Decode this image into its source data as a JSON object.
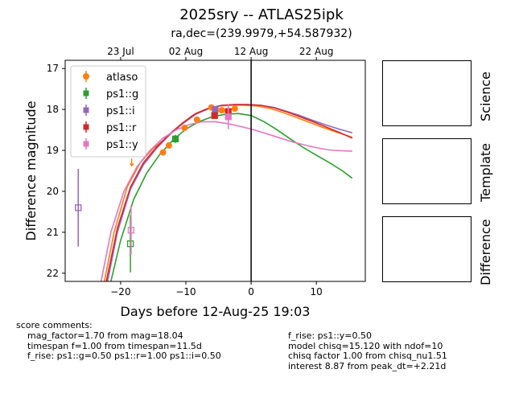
{
  "title": "2025sry -- ATLAS25ipk",
  "subtitle": "ra,dec=(239.9979,+54.587932)",
  "panels": {
    "science": "Science",
    "template": "Template",
    "difference": "Difference"
  },
  "comments": {
    "header": "score comments:",
    "left": [
      "mag_factor=1.70 from mag=18.04",
      "timespan f=1.00 from timespan=11.5d",
      "f_rise: ps1::g=0.50 ps1::r=1.00 ps1::i=0.50"
    ],
    "right": [
      "f_rise: ps1::y=0.50",
      "model chisq=15.120 with ndof=10",
      "chisq factor 1.00 from chisq_nu1.51",
      "interest 8.87 from peak_dt=+2.21d"
    ]
  },
  "chart_data": {
    "type": "scatter",
    "xlabel": "Days before 12-Aug-25 19:03",
    "ylabel": "Difference magnitude",
    "xlim": [
      -28.5,
      17.5
    ],
    "ylim": [
      22.2,
      16.8
    ],
    "y_inverted": true,
    "x_ticks": [
      -20,
      -10,
      0,
      10
    ],
    "y_ticks": [
      17,
      18,
      19,
      20,
      21,
      22
    ],
    "top_axis_ticks": [
      {
        "label": "23 Jul",
        "x": -20.0
      },
      {
        "label": "02 Aug",
        "x": -10.0
      },
      {
        "label": "12 Aug",
        "x": 0.0
      },
      {
        "label": "22 Aug",
        "x": 10.0
      }
    ],
    "reference_line_x": 0,
    "legend_position": "upper-left",
    "series": [
      {
        "name": "atlaso",
        "color": "#ff7f0e",
        "marker": "circle",
        "points": [
          {
            "x": -13.5,
            "y": 19.05,
            "err": 0.05
          },
          {
            "x": -12.6,
            "y": 18.88,
            "err": 0.05
          },
          {
            "x": -10.2,
            "y": 18.45,
            "err": 0.05
          },
          {
            "x": -8.3,
            "y": 18.25,
            "err": 0.05
          },
          {
            "x": -6.1,
            "y": 17.95,
            "err": 0.05
          },
          {
            "x": -4.5,
            "y": 18.02,
            "err": 0.05
          },
          {
            "x": -2.5,
            "y": 17.98,
            "err": 0.05
          }
        ],
        "upper_limits": [
          {
            "x": -18.3,
            "y": 19.3
          }
        ],
        "model": [
          [
            -22.5,
            22.2
          ],
          [
            -21,
            21.0
          ],
          [
            -19,
            19.9
          ],
          [
            -17,
            19.3
          ],
          [
            -15,
            18.95
          ],
          [
            -13,
            18.7
          ],
          [
            -11,
            18.4
          ],
          [
            -9,
            18.15
          ],
          [
            -7,
            18.0
          ],
          [
            -5,
            17.92
          ],
          [
            -3,
            17.9
          ],
          [
            -1,
            17.9
          ],
          [
            1,
            17.92
          ],
          [
            3,
            17.98
          ],
          [
            5,
            18.08
          ],
          [
            7,
            18.2
          ],
          [
            9,
            18.32
          ],
          [
            11,
            18.44
          ],
          [
            13,
            18.55
          ],
          [
            15.5,
            18.68
          ]
        ]
      },
      {
        "name": "ps1::g",
        "color": "#2ca02c",
        "marker": "square",
        "points": [
          {
            "x": -18.5,
            "y": 21.28,
            "err": 0.7,
            "open": true
          },
          {
            "x": -11.6,
            "y": 18.72,
            "err": 0.1
          }
        ],
        "model": [
          [
            -21.5,
            22.2
          ],
          [
            -20,
            21.2
          ],
          [
            -18,
            20.2
          ],
          [
            -16,
            19.55
          ],
          [
            -14,
            19.1
          ],
          [
            -12,
            18.75
          ],
          [
            -10,
            18.48
          ],
          [
            -8,
            18.3
          ],
          [
            -6,
            18.18
          ],
          [
            -4,
            18.12
          ],
          [
            -2,
            18.1
          ],
          [
            0,
            18.15
          ],
          [
            2,
            18.3
          ],
          [
            4,
            18.5
          ],
          [
            6,
            18.72
          ],
          [
            8,
            18.93
          ],
          [
            10,
            19.12
          ],
          [
            12,
            19.3
          ],
          [
            14,
            19.5
          ],
          [
            15.5,
            19.68
          ]
        ]
      },
      {
        "name": "ps1::i",
        "color": "#9467bd",
        "marker": "square",
        "points": [
          {
            "x": -26.5,
            "y": 20.4,
            "err": 0.95,
            "open": true
          },
          {
            "x": -5.5,
            "y": 18.0,
            "err": 0.08
          }
        ],
        "model": [
          [
            -22,
            22.2
          ],
          [
            -20.5,
            21.0
          ],
          [
            -18.5,
            19.95
          ],
          [
            -16.5,
            19.35
          ],
          [
            -14.5,
            18.95
          ],
          [
            -12.5,
            18.62
          ],
          [
            -10.5,
            18.35
          ],
          [
            -8.5,
            18.12
          ],
          [
            -6.5,
            17.98
          ],
          [
            -4.5,
            17.9
          ],
          [
            -2.5,
            17.88
          ],
          [
            -0.5,
            17.88
          ],
          [
            1.5,
            17.9
          ],
          [
            3.5,
            17.95
          ],
          [
            5.5,
            18.05
          ],
          [
            7.5,
            18.15
          ],
          [
            9.5,
            18.27
          ],
          [
            11.5,
            18.38
          ],
          [
            13.5,
            18.48
          ],
          [
            15.5,
            18.57
          ]
        ]
      },
      {
        "name": "ps1::r",
        "color": "#d62728",
        "marker": "square",
        "points": [
          {
            "x": -5.6,
            "y": 18.15,
            "err": 0.08
          },
          {
            "x": -3.5,
            "y": 18.05,
            "err": 0.08
          }
        ],
        "model": [
          [
            -22.2,
            22.2
          ],
          [
            -20.5,
            20.9
          ],
          [
            -18.5,
            19.9
          ],
          [
            -16.5,
            19.3
          ],
          [
            -14.5,
            18.92
          ],
          [
            -12.5,
            18.6
          ],
          [
            -10.5,
            18.33
          ],
          [
            -8.5,
            18.1
          ],
          [
            -6.5,
            17.97
          ],
          [
            -4.5,
            17.9
          ],
          [
            -2.5,
            17.88
          ],
          [
            -0.5,
            17.88
          ],
          [
            1.5,
            17.9
          ],
          [
            3.5,
            17.96
          ],
          [
            5.5,
            18.06
          ],
          [
            7.5,
            18.18
          ],
          [
            9.5,
            18.3
          ],
          [
            11.5,
            18.43
          ],
          [
            13.5,
            18.56
          ],
          [
            15.5,
            18.7
          ]
        ]
      },
      {
        "name": "ps1::y",
        "color": "#e377c2",
        "marker": "square",
        "points": [
          {
            "x": -18.4,
            "y": 20.95,
            "err": 0.6,
            "open": true
          },
          {
            "x": -3.5,
            "y": 18.18,
            "err": 0.3
          }
        ],
        "model": [
          [
            -23,
            22.2
          ],
          [
            -21.5,
            21.0
          ],
          [
            -19.5,
            20.0
          ],
          [
            -17.5,
            19.4
          ],
          [
            -15.5,
            19.0
          ],
          [
            -13.5,
            18.7
          ],
          [
            -11.5,
            18.5
          ],
          [
            -9.5,
            18.37
          ],
          [
            -7.5,
            18.3
          ],
          [
            -5.5,
            18.3
          ],
          [
            -3.5,
            18.35
          ],
          [
            -1.5,
            18.42
          ],
          [
            0.5,
            18.5
          ],
          [
            2.5,
            18.6
          ],
          [
            4.5,
            18.7
          ],
          [
            6.5,
            18.8
          ],
          [
            8.5,
            18.88
          ],
          [
            10.5,
            18.95
          ],
          [
            12.5,
            19.0
          ],
          [
            15.5,
            19.02
          ]
        ]
      }
    ]
  }
}
